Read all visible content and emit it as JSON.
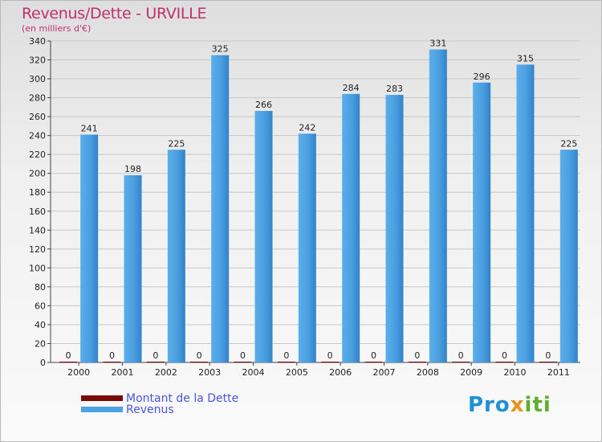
{
  "title": "Revenus/Dette - URVILLE",
  "subtitle": "(en milliers d'€)",
  "colors": {
    "dette": "#7a0a0a",
    "revenus": "#4ca3e3",
    "title": "#c0306a",
    "legend_text": "#4a55e0"
  },
  "legend": [
    {
      "name": "Montant de la Dette",
      "color": "#7a0a0a"
    },
    {
      "name": "Revenus",
      "color": "#4ca3e3"
    }
  ],
  "logo_text": "Proxiti",
  "chart_data": {
    "type": "bar",
    "title": "Revenus/Dette - URVILLE",
    "subtitle": "(en milliers d'€)",
    "categories": [
      "2000",
      "2001",
      "2002",
      "2003",
      "2004",
      "2005",
      "2006",
      "2007",
      "2008",
      "2009",
      "2010",
      "2011"
    ],
    "series": [
      {
        "name": "Montant de la Dette",
        "values": [
          0,
          0,
          0,
          0,
          0,
          0,
          0,
          0,
          0,
          0,
          0,
          0
        ]
      },
      {
        "name": "Revenus",
        "values": [
          241,
          198,
          225,
          325,
          266,
          242,
          284,
          283,
          331,
          296,
          315,
          225
        ]
      }
    ],
    "ylim": [
      0,
      340
    ],
    "yticks": [
      0,
      20,
      40,
      60,
      80,
      100,
      120,
      140,
      160,
      180,
      200,
      220,
      240,
      260,
      280,
      300,
      320,
      340
    ],
    "grid": true,
    "legend_position": "bottom-left"
  }
}
